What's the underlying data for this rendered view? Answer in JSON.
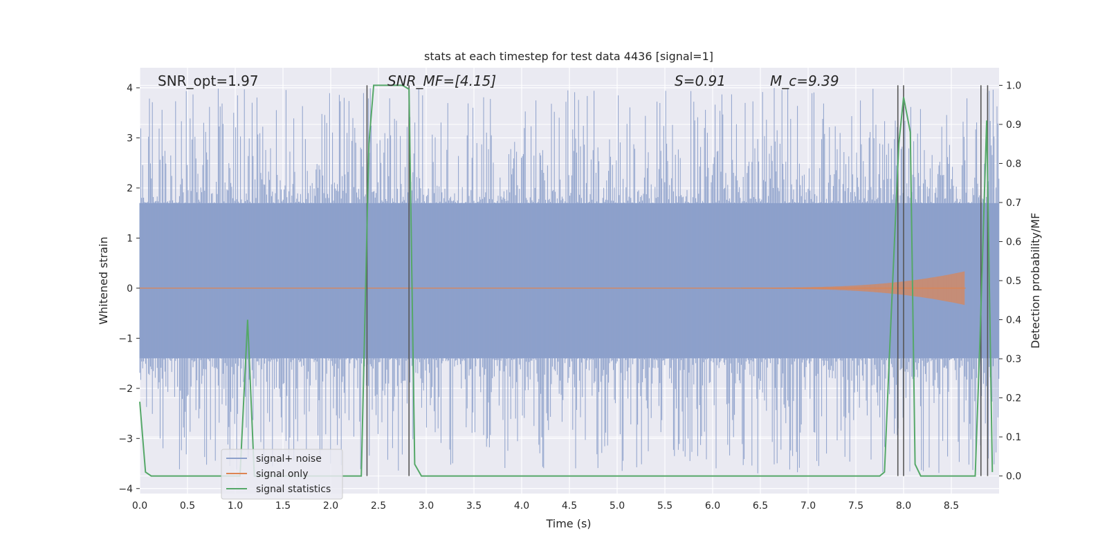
{
  "chart_data": {
    "type": "line",
    "title": "stats at each timestep for test data 4436 [signal=1]",
    "xlabel": "Time (s)",
    "ylabel": "Whitened strain",
    "y2label": "Detection probability/MF",
    "xlim": [
      0,
      9.0
    ],
    "ylim": [
      -4.1,
      4.4
    ],
    "y2lim": [
      -0.045,
      1.045
    ],
    "xticks": [
      0.0,
      0.5,
      1.0,
      1.5,
      2.0,
      2.5,
      3.0,
      3.5,
      4.0,
      4.5,
      5.0,
      5.5,
      6.0,
      6.5,
      7.0,
      7.5,
      8.0,
      8.5
    ],
    "xtick_labels": [
      "0.0",
      "0.5",
      "1.0",
      "1.5",
      "2.0",
      "2.5",
      "3.0",
      "3.5",
      "4.0",
      "4.5",
      "5.0",
      "5.5",
      "6.0",
      "6.5",
      "7.0",
      "7.5",
      "8.0",
      "8.5"
    ],
    "yticks": [
      -4,
      -3,
      -2,
      -1,
      0,
      1,
      2,
      3,
      4
    ],
    "ytick_labels": [
      "−4",
      "−3",
      "−2",
      "−1",
      "0",
      "1",
      "2",
      "3",
      "4"
    ],
    "y2ticks": [
      0.0,
      0.1,
      0.2,
      0.3,
      0.4,
      0.5,
      0.6,
      0.7,
      0.8,
      0.9,
      1.0
    ],
    "y2tick_labels": [
      "0.0",
      "0.1",
      "0.2",
      "0.3",
      "0.4",
      "0.5",
      "0.6",
      "0.7",
      "0.8",
      "0.9",
      "1.0"
    ],
    "grid": true,
    "legend_position": "lower-left",
    "annotations": [
      {
        "text": "SNR_opt=1.97",
        "x": 0.2
      },
      {
        "text": "SNR_MF=[4.15]",
        "x": 2.6
      },
      {
        "text": "S=0.91",
        "x": 5.6
      },
      {
        "text": "M_c=9.39",
        "x": 6.6
      }
    ],
    "series": [
      {
        "name": "signal+ noise",
        "color": "#8da0cb",
        "band_low": -1.4,
        "band_high": 1.7,
        "peak_max": 4.0,
        "peak_min": -3.7
      },
      {
        "name": "signal only",
        "color": "#dd8452",
        "chirp_end": 8.65,
        "max_amplitude": 0.33
      },
      {
        "name": "signal statistics",
        "color": "#55a868",
        "axis": "right",
        "x": [
          0.0,
          0.06,
          0.12,
          1.05,
          1.13,
          1.2,
          2.32,
          2.4,
          2.45,
          2.75,
          2.82,
          2.88,
          2.95,
          7.75,
          7.8,
          7.85,
          7.95,
          8.0,
          8.07,
          8.12,
          8.18,
          8.75,
          8.8,
          8.87,
          8.93
        ],
        "y": [
          0.19,
          0.01,
          0.0,
          0.0,
          0.4,
          0.0,
          0.0,
          0.85,
          1.0,
          1.0,
          0.99,
          0.03,
          0.0,
          0.0,
          0.01,
          0.3,
          0.85,
          0.97,
          0.88,
          0.03,
          0.0,
          0.0,
          0.35,
          0.91,
          0.01
        ]
      }
    ],
    "vlines": [
      2.38,
      2.82,
      7.94,
      8.0,
      8.81,
      8.88
    ]
  }
}
